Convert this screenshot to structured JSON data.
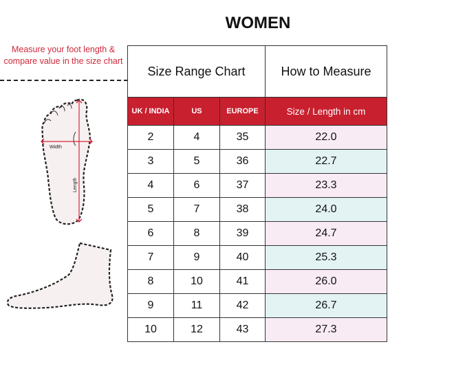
{
  "title": "WOMEN",
  "instruction": "Measure your foot length & compare value in the size chart",
  "diagram": {
    "width_label": "Width",
    "length_label": "Length"
  },
  "table": {
    "header_left": "Size Range Chart",
    "header_right": "How to Measure",
    "columns": [
      "UK / INDIA",
      "US",
      "EUROPE",
      "Size / Length in cm"
    ],
    "rows": [
      [
        "2",
        "4",
        "35",
        "22.0"
      ],
      [
        "3",
        "5",
        "36",
        "22.7"
      ],
      [
        "4",
        "6",
        "37",
        "23.3"
      ],
      [
        "5",
        "7",
        "38",
        "24.0"
      ],
      [
        "6",
        "8",
        "39",
        "24.7"
      ],
      [
        "7",
        "9",
        "40",
        "25.3"
      ],
      [
        "8",
        "10",
        "41",
        "26.0"
      ],
      [
        "9",
        "11",
        "42",
        "26.7"
      ],
      [
        "10",
        "12",
        "43",
        "27.3"
      ]
    ]
  },
  "colors": {
    "accent_red": "#c8202f",
    "row_pink": "#f8ebf4",
    "row_blue": "#e3f3f4"
  }
}
